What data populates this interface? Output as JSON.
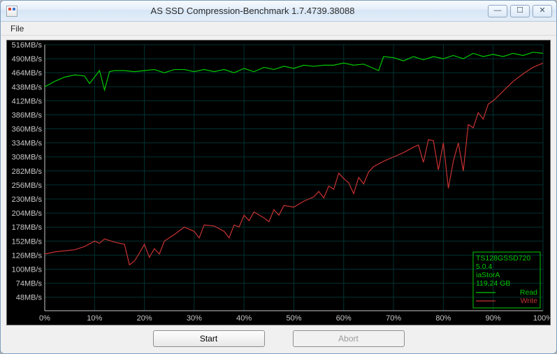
{
  "window": {
    "title": "AS SSD Compression-Benchmark 1.7.4739.38088",
    "min_glyph": "—",
    "max_glyph": "☐",
    "close_glyph": "✕"
  },
  "menubar": {
    "file_label": "File"
  },
  "buttons": {
    "start_label": "Start",
    "abort_label": "Abort"
  },
  "chart": {
    "type": "line",
    "background_color": "#000000",
    "grid_color": "#003333",
    "axis_color": "#c8c8c8",
    "label_color": "#c8c8c8",
    "label_fontsize": 11,
    "y_min": 23,
    "y_max": 516,
    "y_step": 26,
    "y_unit": "MB/s",
    "x_min": 0,
    "x_max": 100,
    "x_step": 10,
    "x_unit": "%",
    "y_labels_override": {
      "283": "283"
    },
    "series": [
      {
        "name": "Read",
        "color": "#00c800",
        "line_width": 1.2,
        "data": [
          [
            0,
            438
          ],
          [
            2,
            448
          ],
          [
            4,
            456
          ],
          [
            6,
            460
          ],
          [
            8,
            458
          ],
          [
            9,
            444
          ],
          [
            10,
            456
          ],
          [
            11,
            468
          ],
          [
            12,
            432
          ],
          [
            13,
            466
          ],
          [
            14,
            468
          ],
          [
            16,
            468
          ],
          [
            18,
            466
          ],
          [
            20,
            468
          ],
          [
            22,
            470
          ],
          [
            24,
            464
          ],
          [
            26,
            470
          ],
          [
            28,
            470
          ],
          [
            30,
            466
          ],
          [
            32,
            470
          ],
          [
            34,
            466
          ],
          [
            36,
            470
          ],
          [
            38,
            464
          ],
          [
            40,
            472
          ],
          [
            42,
            466
          ],
          [
            44,
            474
          ],
          [
            46,
            470
          ],
          [
            48,
            476
          ],
          [
            50,
            472
          ],
          [
            52,
            478
          ],
          [
            54,
            476
          ],
          [
            56,
            478
          ],
          [
            58,
            478
          ],
          [
            60,
            482
          ],
          [
            62,
            478
          ],
          [
            64,
            480
          ],
          [
            66,
            472
          ],
          [
            67,
            468
          ],
          [
            68,
            494
          ],
          [
            70,
            492
          ],
          [
            72,
            486
          ],
          [
            74,
            494
          ],
          [
            76,
            488
          ],
          [
            78,
            494
          ],
          [
            80,
            490
          ],
          [
            82,
            496
          ],
          [
            84,
            490
          ],
          [
            86,
            500
          ],
          [
            88,
            494
          ],
          [
            90,
            498
          ],
          [
            92,
            494
          ],
          [
            94,
            500
          ],
          [
            96,
            496
          ],
          [
            98,
            502
          ],
          [
            100,
            500
          ]
        ]
      },
      {
        "name": "Write",
        "color": "#c83232",
        "line_width": 1.2,
        "data": [
          [
            0,
            128
          ],
          [
            2,
            132
          ],
          [
            4,
            134
          ],
          [
            6,
            136
          ],
          [
            8,
            142
          ],
          [
            10,
            152
          ],
          [
            11,
            148
          ],
          [
            12,
            156
          ],
          [
            14,
            150
          ],
          [
            16,
            146
          ],
          [
            17,
            108
          ],
          [
            18,
            115
          ],
          [
            19,
            130
          ],
          [
            20,
            146
          ],
          [
            21,
            122
          ],
          [
            22,
            138
          ],
          [
            23,
            128
          ],
          [
            24,
            152
          ],
          [
            26,
            164
          ],
          [
            28,
            178
          ],
          [
            30,
            170
          ],
          [
            31,
            158
          ],
          [
            32,
            182
          ],
          [
            34,
            180
          ],
          [
            36,
            170
          ],
          [
            37,
            158
          ],
          [
            38,
            182
          ],
          [
            39,
            178
          ],
          [
            40,
            200
          ],
          [
            41,
            190
          ],
          [
            42,
            206
          ],
          [
            44,
            195
          ],
          [
            45,
            188
          ],
          [
            46,
            210
          ],
          [
            47,
            200
          ],
          [
            48,
            218
          ],
          [
            50,
            215
          ],
          [
            52,
            226
          ],
          [
            54,
            234
          ],
          [
            55,
            244
          ],
          [
            56,
            232
          ],
          [
            57,
            254
          ],
          [
            58,
            248
          ],
          [
            59,
            278
          ],
          [
            60,
            268
          ],
          [
            61,
            260
          ],
          [
            62,
            240
          ],
          [
            63,
            270
          ],
          [
            64,
            258
          ],
          [
            65,
            280
          ],
          [
            66,
            290
          ],
          [
            68,
            300
          ],
          [
            70,
            308
          ],
          [
            72,
            316
          ],
          [
            74,
            326
          ],
          [
            75,
            330
          ],
          [
            76,
            298
          ],
          [
            77,
            340
          ],
          [
            78,
            338
          ],
          [
            79,
            284
          ],
          [
            80,
            334
          ],
          [
            81,
            250
          ],
          [
            82,
            300
          ],
          [
            83,
            334
          ],
          [
            84,
            282
          ],
          [
            85,
            368
          ],
          [
            86,
            362
          ],
          [
            87,
            390
          ],
          [
            88,
            378
          ],
          [
            89,
            406
          ],
          [
            90,
            412
          ],
          [
            92,
            430
          ],
          [
            94,
            448
          ],
          [
            96,
            462
          ],
          [
            98,
            474
          ],
          [
            100,
            482
          ]
        ]
      }
    ]
  },
  "device_info": {
    "box_stroke": "#00c800",
    "lines": [
      {
        "text": "TS128GSSD720",
        "color": "#00c800"
      },
      {
        "text": "5.0.4",
        "color": "#00c800"
      },
      {
        "text": "iaStorA",
        "color": "#00c800"
      },
      {
        "text": "119,24 GB",
        "color": "#00c800"
      }
    ]
  },
  "legend": {
    "read_label": "Read",
    "write_label": "Write"
  }
}
